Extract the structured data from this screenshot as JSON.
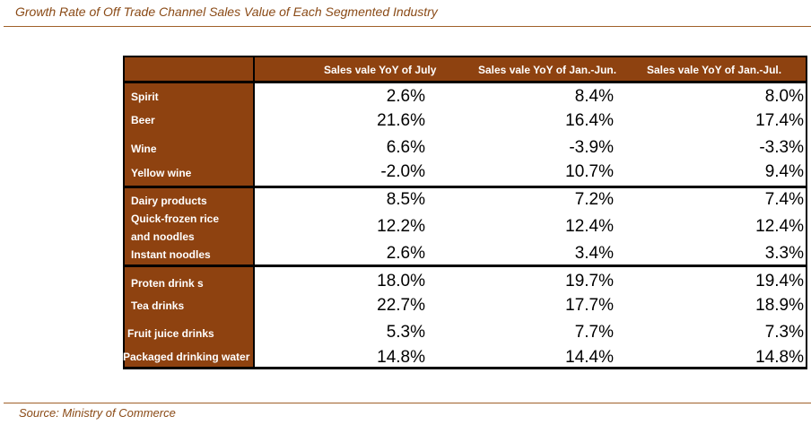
{
  "title": "Growth Rate of Off Trade Channel Sales Value of Each Segmented Industry",
  "source": "Source: Ministry of Commerce",
  "headers": [
    "Sales vale YoY of July",
    "Sales vale YoY of Jan.-Jun.",
    "Sales vale YoY of  Jan.-Jul."
  ],
  "groups": [
    {
      "rows": [
        {
          "label": "Spirit",
          "values": [
            "2.6%",
            "8.4%",
            "8.0%"
          ]
        },
        {
          "label": "Beer",
          "values": [
            "21.6%",
            "16.4%",
            "17.4%"
          ]
        },
        {
          "label": "Wine",
          "values": [
            "6.6%",
            "-3.9%",
            "-3.3%"
          ]
        },
        {
          "label": "Yellow wine",
          "values": [
            "-2.0%",
            "10.7%",
            "9.4%"
          ]
        }
      ]
    },
    {
      "rows": [
        {
          "label": "Dairy products",
          "values": [
            "8.5%",
            "7.2%",
            "7.4%"
          ]
        },
        {
          "label": "Quick-frozen rice and noodles",
          "label_line1": "Quick-frozen rice",
          "label_line2": "and noodles",
          "values": [
            "12.2%",
            "12.4%",
            "12.4%"
          ]
        },
        {
          "label": "Instant noodles",
          "values": [
            "2.6%",
            "3.4%",
            "3.3%"
          ]
        }
      ]
    },
    {
      "rows": [
        {
          "label": "Proten drink s",
          "values": [
            "18.0%",
            "19.7%",
            "19.4%"
          ]
        },
        {
          "label": "Tea drinks",
          "values": [
            "22.7%",
            "17.7%",
            "18.9%"
          ]
        },
        {
          "label": "Fruit juice drinks",
          "values": [
            "5.3%",
            "7.7%",
            "7.3%"
          ]
        },
        {
          "label": "Packaged drinking water",
          "values": [
            "14.8%",
            "14.4%",
            "14.8%"
          ]
        }
      ]
    }
  ],
  "colors": {
    "header_bg": "#8e4210",
    "title_text": "#8a4a16"
  }
}
